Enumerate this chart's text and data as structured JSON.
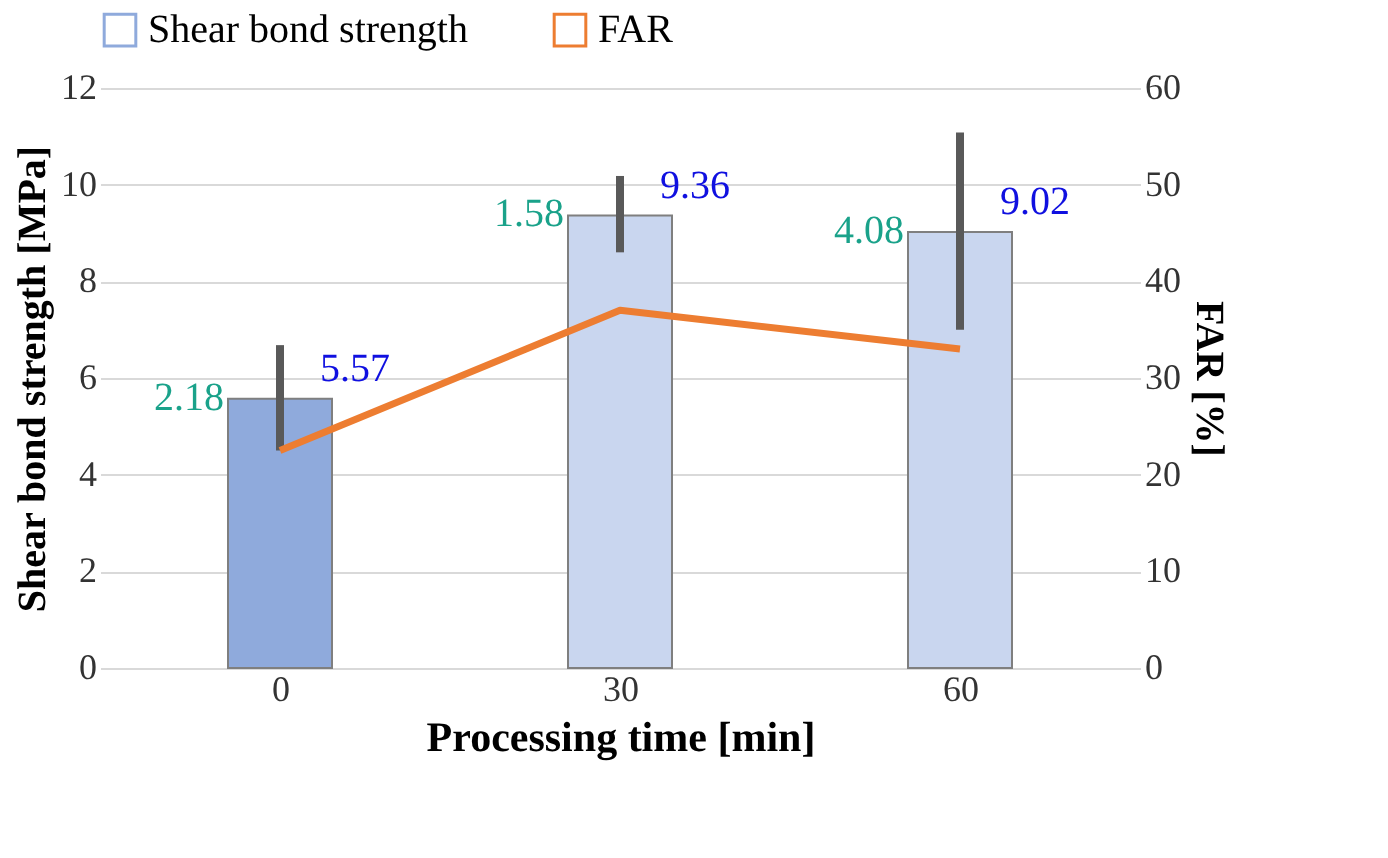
{
  "chart_data": {
    "type": "bar",
    "categories": [
      "0",
      "30",
      "60"
    ],
    "xlabel": "Processing time [min]",
    "ylabel": "Shear bond strength [MPa]",
    "y2label": "FAR [%]",
    "series": [
      {
        "name": "Shear bond strength",
        "color": "#8faadc",
        "colors": [
          "#8faadc",
          "#c9d6ef",
          "#c9d6ef"
        ],
        "values": [
          5.57,
          9.36,
          9.02
        ],
        "errors": [
          [
            4.5,
            6.68
          ],
          [
            8.6,
            10.18
          ],
          [
            7.0,
            11.08
          ]
        ],
        "value_labels": [
          "5.57",
          "9.36",
          "9.02"
        ]
      },
      {
        "name": "FAR",
        "type": "line",
        "axis": "y2",
        "color": "#ed7d31",
        "values": [
          22.5,
          37,
          33
        ]
      }
    ],
    "ylim": [
      0,
      12
    ],
    "yticks": [
      0,
      2,
      4,
      6,
      8,
      10,
      12
    ],
    "y2lim": [
      0,
      60
    ],
    "y2ticks": [
      0,
      10,
      20,
      30,
      40,
      50,
      60
    ],
    "annotations": [
      "2.18",
      "1.58",
      "4.08"
    ],
    "grid": "y",
    "legend": "top"
  }
}
